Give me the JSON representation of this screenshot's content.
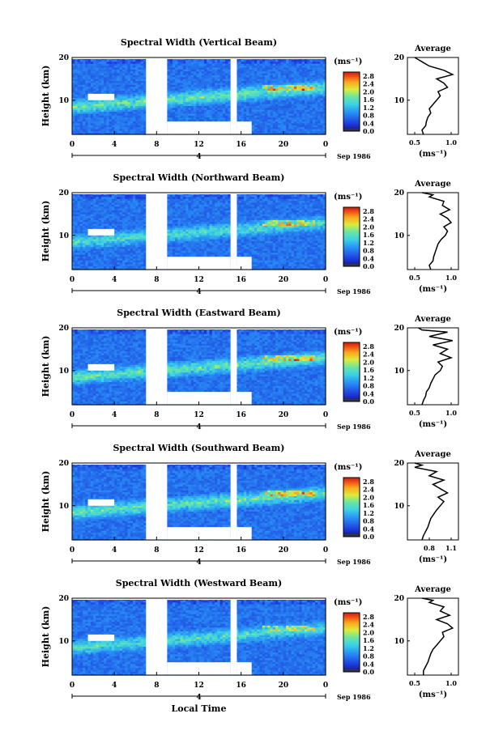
{
  "figure": {
    "xlabel": "Local Time",
    "heatmap_ylabel": "Height (km)",
    "colorbar_unit": "(ms⁻¹)",
    "date_label": "Sep 1986",
    "date_marker": "4"
  },
  "chart_data": [
    {
      "type": "heatmap",
      "title": "Spectral Width (Vertical Beam)",
      "xlabel": "Local Time",
      "ylabel": "Height (km)",
      "xticks": [
        "0",
        "4",
        "8",
        "12",
        "16",
        "20",
        "0"
      ],
      "xlim": [
        0,
        24
      ],
      "yticks": [
        "10",
        "20"
      ],
      "ylim": [
        2,
        20
      ],
      "colorbar": {
        "ticks": [
          "0.0",
          "0.4",
          "0.8",
          "1.2",
          "1.6",
          "2.0",
          "2.4",
          "2.8"
        ],
        "range": [
          0,
          3.0
        ]
      },
      "data_gaps_hours": [
        [
          7,
          9,
          "full"
        ],
        [
          9,
          15,
          "below_5km"
        ],
        [
          15,
          15.6,
          "full"
        ],
        [
          15.6,
          17,
          "below_5km"
        ]
      ],
      "features": [
        {
          "desc": "enhanced band",
          "x": [
            0,
            24
          ],
          "y": [
            7.5,
            13.0
          ],
          "max": 2.8
        },
        {
          "desc": "peak region",
          "x": [
            18,
            23
          ],
          "y": [
            12.5,
            13.5
          ],
          "value": 2.6
        }
      ]
    },
    {
      "type": "line",
      "title": "Average",
      "xlabel": "(ms⁻¹)",
      "ylabel": "",
      "xticks": [
        "0.5",
        "1.0"
      ],
      "xlim": [
        0.4,
        1.1
      ],
      "yticks": [
        "10",
        "20"
      ],
      "ylim": [
        2,
        20
      ],
      "series": [
        {
          "x": [
            0.62,
            0.6,
            0.65,
            0.66,
            0.68,
            0.72,
            0.7,
            0.75,
            0.8,
            0.85,
            0.82,
            0.95,
            0.9,
            0.8,
            1.02,
            0.9,
            0.7,
            0.6,
            0.55,
            0.5
          ],
          "y": [
            2,
            3,
            4,
            5,
            6,
            7,
            8,
            9,
            10,
            11,
            12,
            13,
            14,
            15,
            16,
            17,
            18,
            19,
            19.5,
            20
          ]
        }
      ]
    },
    {
      "type": "heatmap",
      "title": "Spectral Width (Northward Beam)",
      "xlabel": "Local Time",
      "ylabel": "Height (km)",
      "xticks": [
        "0",
        "4",
        "8",
        "12",
        "16",
        "20",
        "0"
      ],
      "xlim": [
        0,
        24
      ],
      "yticks": [
        "10",
        "20"
      ],
      "ylim": [
        2,
        20
      ],
      "colorbar": {
        "ticks": [
          "0.0",
          "0.4",
          "0.8",
          "1.2",
          "1.6",
          "2.0",
          "2.4",
          "2.8"
        ],
        "range": [
          0,
          3.0
        ]
      },
      "data_gaps_hours": [
        [
          7,
          9,
          "full"
        ],
        [
          9,
          15,
          "below_5km"
        ],
        [
          15,
          15.6,
          "full"
        ],
        [
          15.6,
          17,
          "below_5km"
        ]
      ],
      "features": [
        {
          "desc": "enhanced band",
          "x": [
            0,
            24
          ],
          "y": [
            7.5,
            13.0
          ],
          "max": 2.4
        },
        {
          "desc": "peak region",
          "x": [
            18,
            23
          ],
          "y": [
            12.5,
            13.5
          ],
          "value": 2.3
        }
      ]
    },
    {
      "type": "line",
      "title": "Average",
      "xlabel": "(ms⁻¹)",
      "ylabel": "",
      "xticks": [
        "0.5",
        "1.0"
      ],
      "xlim": [
        0.4,
        1.1
      ],
      "series": [
        {
          "x": [
            0.72,
            0.7,
            0.75,
            0.76,
            0.78,
            0.8,
            0.82,
            0.86,
            0.92,
            0.95,
            0.9,
            1.0,
            0.95,
            0.85,
            0.98,
            0.88,
            0.9,
            0.7,
            0.75,
            0.6
          ],
          "y": [
            2,
            3,
            4,
            5,
            6,
            7,
            8,
            9,
            10,
            11,
            12,
            13,
            14,
            15,
            16,
            17,
            18,
            19,
            19.5,
            20
          ]
        }
      ]
    },
    {
      "type": "heatmap",
      "title": "Spectral Width (Eastward Beam)",
      "xlabel": "Local Time",
      "ylabel": "Height (km)",
      "xticks": [
        "0",
        "4",
        "8",
        "12",
        "16",
        "20",
        "0"
      ],
      "xlim": [
        0,
        24
      ],
      "yticks": [
        "10",
        "20"
      ],
      "ylim": [
        2,
        20
      ],
      "colorbar": {
        "ticks": [
          "0.0",
          "0.4",
          "0.8",
          "1.2",
          "1.6",
          "2.0",
          "2.4",
          "2.8"
        ],
        "range": [
          0,
          3.0
        ]
      },
      "data_gaps_hours": [
        [
          7,
          9,
          "full"
        ],
        [
          9,
          15,
          "below_5km"
        ],
        [
          15,
          15.6,
          "full"
        ],
        [
          15.6,
          17,
          "below_5km"
        ]
      ],
      "features": [
        {
          "desc": "enhanced band",
          "x": [
            0,
            24
          ],
          "y": [
            7.5,
            13.0
          ],
          "max": 2.8
        },
        {
          "desc": "peak region",
          "x": [
            18,
            23
          ],
          "y": [
            12.5,
            13.5
          ],
          "value": 2.7
        }
      ]
    },
    {
      "type": "line",
      "title": "Average",
      "xlabel": "(ms⁻¹)",
      "ylabel": "",
      "xticks": [
        "0.5",
        "1.0"
      ],
      "xlim": [
        0.4,
        1.1
      ],
      "series": [
        {
          "x": [
            0.6,
            0.62,
            0.65,
            0.66,
            0.7,
            0.72,
            0.75,
            0.78,
            0.85,
            0.88,
            0.82,
            1.0,
            0.85,
            0.95,
            0.75,
            1.02,
            0.7,
            0.95,
            0.6,
            0.55
          ],
          "y": [
            2,
            3,
            4,
            5,
            6,
            7,
            8,
            9,
            10,
            11,
            12,
            13,
            14,
            15,
            16,
            17,
            18,
            19,
            19.5,
            20
          ]
        }
      ]
    },
    {
      "type": "heatmap",
      "title": "Spectral Width (Southward Beam)",
      "xlabel": "Local Time",
      "ylabel": "Height (km)",
      "xticks": [
        "0",
        "4",
        "8",
        "12",
        "16",
        "20",
        "0"
      ],
      "xlim": [
        0,
        24
      ],
      "yticks": [
        "10",
        "20"
      ],
      "ylim": [
        2,
        20
      ],
      "colorbar": {
        "ticks": [
          "0.0",
          "0.4",
          "0.8",
          "1.2",
          "1.6",
          "2.0",
          "2.4",
          "2.8"
        ],
        "range": [
          0,
          3.0
        ]
      },
      "data_gaps_hours": [
        [
          7,
          9,
          "full"
        ],
        [
          9,
          15,
          "below_5km"
        ],
        [
          15,
          15.6,
          "full"
        ],
        [
          15.6,
          17,
          "below_5km"
        ]
      ],
      "features": [
        {
          "desc": "enhanced band",
          "x": [
            0,
            24
          ],
          "y": [
            7.5,
            13.0
          ],
          "max": 2.8
        },
        {
          "desc": "peak region",
          "x": [
            18,
            23
          ],
          "y": [
            12.5,
            13.5
          ],
          "value": 2.6
        }
      ]
    },
    {
      "type": "line",
      "title": "Average",
      "xlabel": "(ms⁻¹)",
      "ylabel": "",
      "xticks": [
        "0.8",
        "1.1"
      ],
      "xlim": [
        0.5,
        1.2
      ],
      "series": [
        {
          "x": [
            0.7,
            0.72,
            0.75,
            0.78,
            0.8,
            0.82,
            0.86,
            0.9,
            0.95,
            1.0,
            0.92,
            1.05,
            0.95,
            0.85,
            1.0,
            0.8,
            0.9,
            0.6,
            0.7,
            0.6
          ],
          "y": [
            2,
            3,
            4,
            5,
            6,
            7,
            8,
            9,
            10,
            11,
            12,
            13,
            14,
            15,
            16,
            17,
            18,
            19,
            19.5,
            20
          ]
        }
      ]
    },
    {
      "type": "heatmap",
      "title": "Spectral Width (Westward Beam)",
      "xlabel": "Local Time",
      "ylabel": "Height (km)",
      "xticks": [
        "0",
        "4",
        "8",
        "12",
        "16",
        "20",
        "0"
      ],
      "xlim": [
        0,
        24
      ],
      "yticks": [
        "10",
        "20"
      ],
      "ylim": [
        2,
        20
      ],
      "colorbar": {
        "ticks": [
          "0.0",
          "0.4",
          "0.8",
          "1.2",
          "1.6",
          "2.0",
          "2.4",
          "2.8"
        ],
        "range": [
          0,
          3.0
        ]
      },
      "data_gaps_hours": [
        [
          7,
          9,
          "full"
        ],
        [
          9,
          15,
          "below_5km"
        ],
        [
          15,
          15.6,
          "full"
        ],
        [
          15.6,
          17,
          "below_5km"
        ]
      ],
      "features": [
        {
          "desc": "enhanced band",
          "x": [
            0,
            24
          ],
          "y": [
            7.5,
            13.0
          ],
          "max": 2.4
        },
        {
          "desc": "peak region",
          "x": [
            18,
            23
          ],
          "y": [
            12.5,
            13.5
          ],
          "value": 2.2
        }
      ]
    },
    {
      "type": "line",
      "title": "Average",
      "xlabel": "(ms⁻¹)",
      "ylabel": "",
      "xticks": [
        "0.5",
        "1.0"
      ],
      "xlim": [
        0.4,
        1.1
      ],
      "series": [
        {
          "x": [
            0.62,
            0.62,
            0.65,
            0.68,
            0.7,
            0.72,
            0.75,
            0.8,
            0.85,
            0.9,
            0.88,
            1.02,
            0.95,
            0.8,
            0.98,
            0.85,
            0.9,
            0.7,
            0.75,
            0.6
          ],
          "y": [
            2,
            3,
            4,
            5,
            6,
            7,
            8,
            9,
            10,
            11,
            12,
            13,
            14,
            15,
            16,
            17,
            18,
            19,
            19.5,
            20
          ]
        }
      ]
    }
  ]
}
